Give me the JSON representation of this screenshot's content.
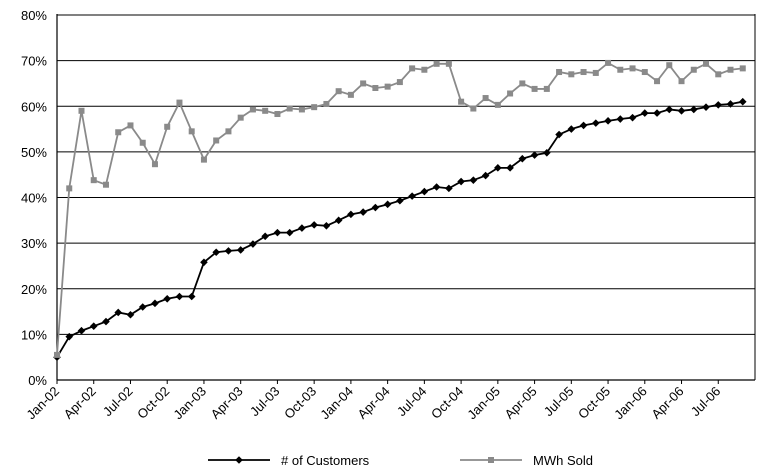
{
  "chart_data": {
    "type": "line",
    "title": "",
    "xlabel": "",
    "ylabel": "",
    "ylim": [
      0,
      80
    ],
    "y_ticks": [
      "0%",
      "10%",
      "20%",
      "30%",
      "40%",
      "50%",
      "60%",
      "70%",
      "80%"
    ],
    "x_start": "Jan-02",
    "x_tick_labels": [
      "Jan-02",
      "Apr-02",
      "Jul-02",
      "Oct-02",
      "Jan-03",
      "Apr-03",
      "Jul-03",
      "Oct-03",
      "Jan-04",
      "Apr-04",
      "Jul-04",
      "Oct-04",
      "Jan-05",
      "Apr-05",
      "Jul-05",
      "Oct-05",
      "Jan-06",
      "Apr-06",
      "Jul-06"
    ],
    "grid": "horizontal",
    "legend_position": "bottom",
    "series": [
      {
        "name": "# of Customers",
        "color": "#000000",
        "marker": "diamond",
        "values": [
          5,
          9.5,
          10.8,
          11.8,
          12.8,
          14.8,
          14.3,
          16,
          16.8,
          17.8,
          18.3,
          18.3,
          25.8,
          28,
          28.3,
          28.5,
          29.8,
          31.5,
          32.3,
          32.3,
          33.3,
          34,
          33.8,
          35,
          36.3,
          36.8,
          37.8,
          38.5,
          39.3,
          40.3,
          41.3,
          42.3,
          42,
          43.5,
          43.8,
          44.8,
          46.5,
          46.5,
          48.5,
          49.3,
          49.8,
          53.8,
          55,
          55.8,
          56.3,
          56.8,
          57.2,
          57.5,
          58.5,
          58.5,
          59.3,
          59,
          59.3,
          59.8,
          60.3,
          60.5,
          61
        ]
      },
      {
        "name": "MWh Sold",
        "color": "#8a8a8a",
        "marker": "square",
        "values": [
          5.5,
          42,
          59,
          43.8,
          42.8,
          54.3,
          55.8,
          52,
          47.3,
          55.5,
          60.8,
          54.5,
          48.3,
          52.5,
          54.5,
          57.5,
          59.3,
          59,
          58.3,
          59.5,
          59.3,
          59.8,
          60.5,
          63.3,
          62.5,
          65,
          64,
          64.3,
          65.3,
          68.3,
          68,
          69.3,
          69.3,
          61,
          59.5,
          61.8,
          60.3,
          62.8,
          65,
          63.8,
          63.8,
          67.5,
          67,
          67.5,
          67.3,
          69.5,
          68,
          68.3,
          67.5,
          65.5,
          69,
          65.5,
          68,
          69.3,
          67,
          68,
          68.3
        ]
      }
    ]
  }
}
